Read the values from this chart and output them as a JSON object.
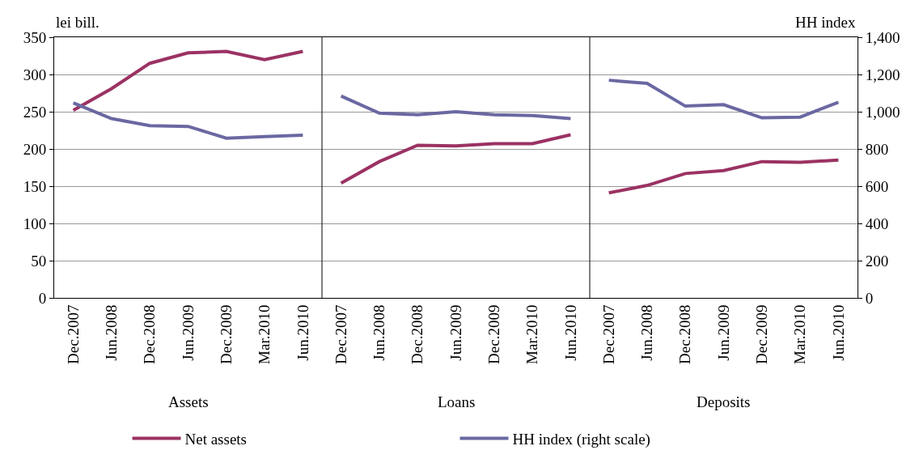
{
  "chart_data": {
    "type": "line",
    "categories": [
      "Dec.2007",
      "Jun.2008",
      "Dec.2008",
      "Jun.2009",
      "Dec.2009",
      "Mar.2010",
      "Jun.2010",
      "Dec.2007",
      "Jun.2008",
      "Dec.2008",
      "Jun.2009",
      "Dec.2009",
      "Mar.2010",
      "Jun.2010",
      "Dec.2007",
      "Jun.2008",
      "Dec.2008",
      "Jun.2009",
      "Dec.2009",
      "Mar.2010",
      "Jun.2010"
    ],
    "ylabel": "lei bill.",
    "y2label": "HH index",
    "ylim": [
      0,
      350
    ],
    "yticks": [
      0,
      50,
      100,
      150,
      200,
      250,
      300,
      350
    ],
    "y2lim": [
      0,
      1400
    ],
    "y2ticks": [
      {
        "value": 0,
        "label": "0"
      },
      {
        "value": 200,
        "label": "200"
      },
      {
        "value": 400,
        "label": "400"
      },
      {
        "value": 600,
        "label": "600"
      },
      {
        "value": 800,
        "label": "800"
      },
      {
        "value": 1000,
        "label": "1,000"
      },
      {
        "value": 1200,
        "label": "1,200"
      },
      {
        "value": 1400,
        "label": "1,400"
      }
    ],
    "grid": "y",
    "legend": "bottom",
    "marker": "none",
    "line_style": "solid",
    "annotations": [
      "Assets",
      "Loans",
      "Deposits"
    ],
    "series": [
      {
        "name": "Net assets",
        "color": "#9b3263",
        "values": [
          252,
          281,
          315,
          329,
          331,
          320,
          331,
          null,
          null,
          null,
          null,
          null,
          null,
          null,
          null,
          null,
          null,
          null,
          null,
          null,
          null
        ]
      },
      {
        "name": "HH index (right scale)",
        "color": "#6a68a2",
        "axis": "y2",
        "values": [
          1047,
          963,
          925,
          921,
          858,
          866,
          874,
          null,
          null,
          null,
          null,
          null,
          null,
          null,
          null,
          null,
          null,
          null,
          null,
          null,
          null
        ]
      },
      {
        "color": "#9b3263",
        "values": [
          null,
          null,
          null,
          null,
          null,
          null,
          null,
          154,
          183,
          205,
          204,
          207,
          207,
          219,
          null,
          null,
          null,
          null,
          null,
          null,
          null
        ]
      },
      {
        "color": "#6a68a2",
        "axis": "y2",
        "values": [
          null,
          null,
          null,
          null,
          null,
          null,
          null,
          1084,
          992,
          984,
          1000,
          984,
          979,
          963,
          null,
          null,
          null,
          null,
          null,
          null,
          null
        ]
      },
      {
        "color": "#9b3263",
        "values": [
          null,
          null,
          null,
          null,
          null,
          null,
          null,
          null,
          null,
          null,
          null,
          null,
          null,
          null,
          141,
          151,
          167,
          171,
          183,
          182,
          185
        ]
      },
      {
        "color": "#6a68a2",
        "axis": "y2",
        "values": [
          null,
          null,
          null,
          null,
          null,
          null,
          null,
          null,
          null,
          null,
          null,
          null,
          null,
          null,
          1169,
          1152,
          1030,
          1038,
          967,
          971,
          1051
        ]
      }
    ]
  }
}
